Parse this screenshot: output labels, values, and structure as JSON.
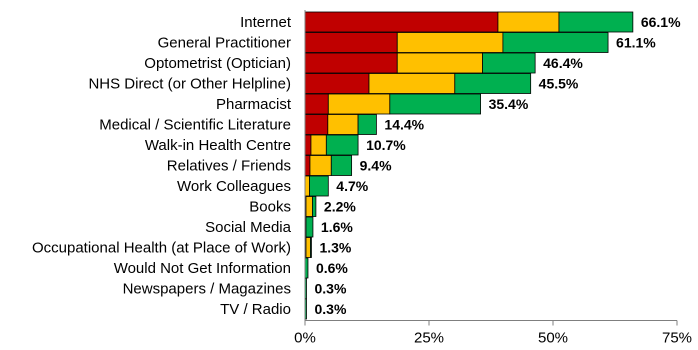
{
  "chart_data": {
    "type": "bar",
    "orientation": "horizontal",
    "stacked": true,
    "categories": [
      "Internet",
      "General Practitioner",
      "Optometrist (Optician)",
      "NHS Direct (or Other Helpline)",
      "Pharmacist",
      "Medical / Scientific Literature",
      "Walk-in Health Centre",
      "Relatives / Friends",
      "Work Colleagues",
      "Books",
      "Social Media",
      "Occupational Health (at Place of Work)",
      "Would Not Get Information",
      "Newspapers / Magazines",
      "TV / Radio"
    ],
    "series": [
      {
        "color": "#c00000",
        "values": [
          38.9,
          18.6,
          18.6,
          12.9,
          4.7,
          4.6,
          1.2,
          1.0,
          0.0,
          0.2,
          0.2,
          0.2,
          0.0,
          0.0,
          0.0
        ]
      },
      {
        "color": "#ffc000",
        "values": [
          12.3,
          21.3,
          17.2,
          17.3,
          12.4,
          6.1,
          3.1,
          4.3,
          0.9,
          1.3,
          0.0,
          0.9,
          0.0,
          0.0,
          0.0
        ]
      },
      {
        "color": "#00b050",
        "values": [
          14.9,
          21.2,
          10.6,
          15.3,
          18.3,
          3.7,
          6.4,
          4.1,
          3.8,
          0.7,
          1.4,
          0.2,
          0.6,
          0.3,
          0.3
        ]
      }
    ],
    "totals": [
      "66.1%",
      "61.1%",
      "46.4%",
      "45.5%",
      "35.4%",
      "14.4%",
      "10.7%",
      "9.4%",
      "4.7%",
      "2.2%",
      "1.6%",
      "1.3%",
      "0.6%",
      "0.3%",
      "0.3%"
    ],
    "xlim": [
      0,
      75
    ],
    "xticks": [
      0,
      25,
      50,
      75
    ],
    "xtick_labels": [
      "0%",
      "25%",
      "50%",
      "75%"
    ],
    "grid": false,
    "legend": "none"
  }
}
